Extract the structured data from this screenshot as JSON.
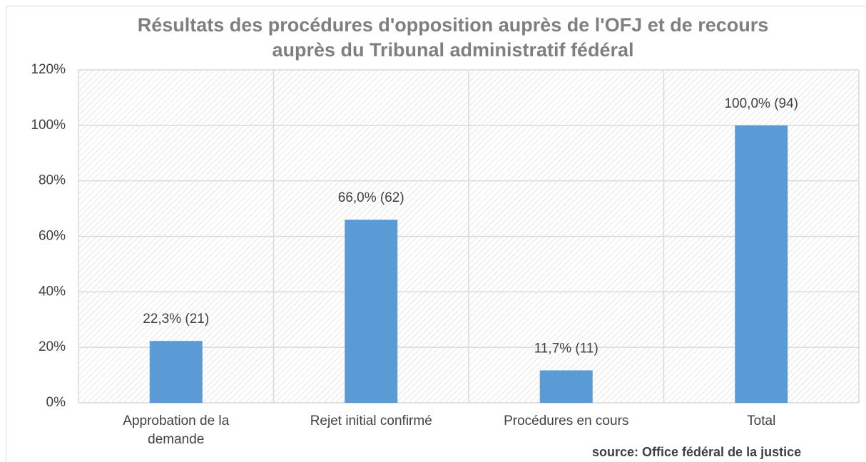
{
  "chart_data": {
    "type": "bar",
    "title": "Résultats des procédures d'opposition auprès de l'OFJ et de recours auprès du Tribunal administratif fédéral",
    "categories": [
      "Approbation de la demande",
      "Rejet initial confirmé",
      "Procédures en cours",
      "Total"
    ],
    "values": [
      22.3,
      66.0,
      11.7,
      100.0
    ],
    "value_labels": [
      "22,3% (21)",
      "66,0% (62)",
      "11,7% (11)",
      "100,0% (94)"
    ],
    "color": "#5b9bd5",
    "ylim": [
      0,
      120
    ],
    "yticks": [
      {
        "value": 0,
        "label": "0%"
      },
      {
        "value": 20,
        "label": "20%"
      },
      {
        "value": 40,
        "label": "40%"
      },
      {
        "value": 60,
        "label": "60%"
      },
      {
        "value": 80,
        "label": "80%"
      },
      {
        "value": 100,
        "label": "100%"
      },
      {
        "value": 120,
        "label": "120%"
      }
    ],
    "grid": true,
    "source": "source: Office fédéral de la justice"
  }
}
